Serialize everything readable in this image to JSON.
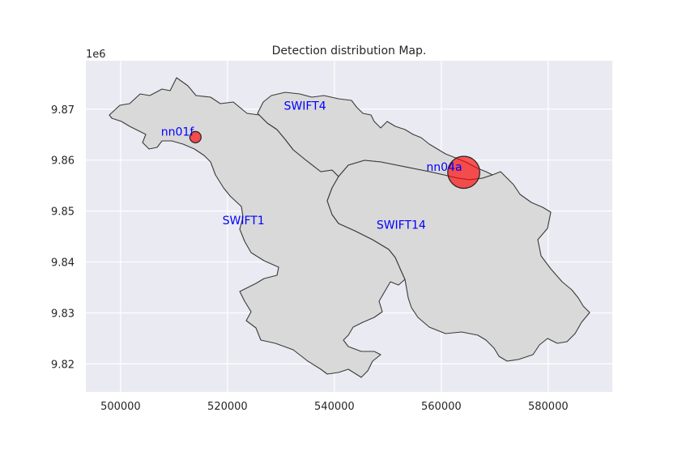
{
  "chart_data": {
    "type": "map",
    "title": "Detection distribution Map.",
    "y_offset_label": "1e6",
    "xlim": [
      493500,
      592000
    ],
    "ylim": [
      9.8145,
      9.8795
    ],
    "x_ticks": [
      500000,
      520000,
      540000,
      560000,
      580000
    ],
    "x_tick_labels": [
      "500000",
      "520000",
      "540000",
      "560000",
      "580000"
    ],
    "y_ticks": [
      9.82,
      9.83,
      9.84,
      9.85,
      9.86,
      9.87
    ],
    "y_tick_labels": [
      "9.82",
      "9.83",
      "9.84",
      "9.85",
      "9.86",
      "9.87"
    ],
    "grid": true,
    "region_labels": [
      {
        "name": "SWIFT4",
        "x": 534500,
        "y": 9.8699
      },
      {
        "name": "SWIFT1",
        "x": 523000,
        "y": 9.8474
      },
      {
        "name": "SWIFT14",
        "x": 552500,
        "y": 9.8465
      }
    ],
    "points": [
      {
        "name": "nn01f",
        "x": 514000,
        "y": 9.8645,
        "size": 1
      },
      {
        "name": "nn04a",
        "x": 564200,
        "y": 9.8576,
        "size": 8
      }
    ],
    "colors": {
      "background": "#eaeaf2",
      "grid": "#ffffff",
      "region_fill": "#d9d9d9",
      "region_edge": "#3a3a3a",
      "point_fill": "#ff0000",
      "label": "#0000ff"
    }
  }
}
